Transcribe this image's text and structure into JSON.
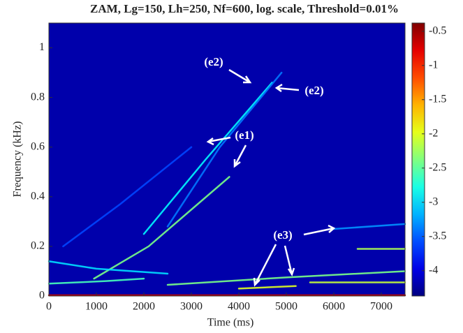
{
  "chart_data": {
    "type": "spectrogram",
    "title": "ZAM, Lg=150, Lh=250, Nf=600, log. scale, Threshold=0.01%",
    "x_label": "Time (ms)",
    "y_label": "Frequency (kHz)",
    "xlim": [
      0,
      7500
    ],
    "xticks": [
      0,
      1000,
      2000,
      3000,
      4000,
      5000,
      6000,
      7000
    ],
    "ylim": [
      0,
      1.1
    ],
    "yticks": [
      0,
      0.2,
      0.4,
      0.6,
      0.8,
      1
    ],
    "clim": [
      -4.37,
      -0.38
    ],
    "cticks": [
      -0.5,
      -1,
      -1.5,
      -2,
      -2.5,
      -3,
      -3.5,
      -4
    ],
    "colormap": "jet",
    "background_level": -4.2,
    "ridges": [
      {
        "x": [
          950,
          2100,
          3800
        ],
        "y": [
          0.07,
          0.2,
          0.48
        ],
        "level": -2.4
      },
      {
        "x": [
          2000,
          3300,
          4700
        ],
        "y": [
          0.25,
          0.55,
          0.86
        ],
        "level": -2.9
      },
      {
        "x": [
          2500,
          3600,
          4900
        ],
        "y": [
          0.28,
          0.6,
          0.9
        ],
        "level": -3.4
      },
      {
        "x": [
          300,
          1500,
          3000
        ],
        "y": [
          0.2,
          0.37,
          0.6
        ],
        "level": -3.6
      },
      {
        "x": [
          2500,
          5000,
          7500
        ],
        "y": [
          0.045,
          0.075,
          0.1
        ],
        "level": -2.4
      },
      {
        "x": [
          4000,
          5200
        ],
        "y": [
          0.03,
          0.04
        ],
        "level": -2.0
      },
      {
        "x": [
          5500,
          7500
        ],
        "y": [
          0.055,
          0.055
        ],
        "level": -2.1
      },
      {
        "x": [
          6500,
          7500
        ],
        "y": [
          0.19,
          0.19
        ],
        "level": -2.2
      },
      {
        "x": [
          6000,
          7500
        ],
        "y": [
          0.27,
          0.29
        ],
        "level": -3.3
      },
      {
        "x": [
          0,
          1200,
          2000
        ],
        "y": [
          0.05,
          0.06,
          0.07
        ],
        "level": -2.6
      },
      {
        "x": [
          0,
          1000,
          2500
        ],
        "y": [
          0.14,
          0.11,
          0.09
        ],
        "level": -3.0
      },
      {
        "x": [
          0,
          7500
        ],
        "y": [
          0.003,
          0.003
        ],
        "level": -0.6
      }
    ],
    "annotations": [
      "(e2)",
      "(e2)",
      "(e1)",
      "(e3)"
    ]
  }
}
